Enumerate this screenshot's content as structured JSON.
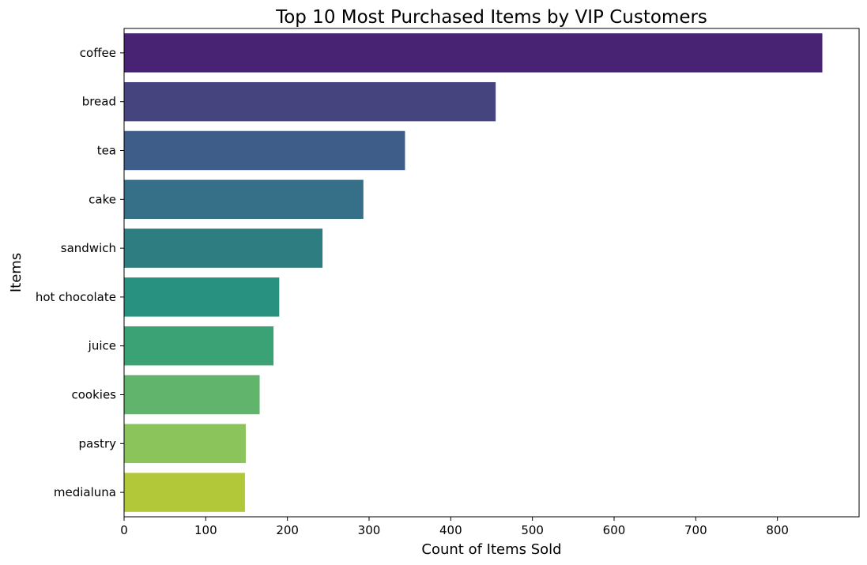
{
  "chart_data": {
    "type": "bar",
    "orientation": "horizontal",
    "title": "Top 10 Most Purchased Items by VIP Customers",
    "xlabel": "Count of Items Sold",
    "ylabel": "Items",
    "categories": [
      "coffee",
      "bread",
      "tea",
      "cake",
      "sandwich",
      "hot chocolate",
      "juice",
      "cookies",
      "pastry",
      "medialuna"
    ],
    "values": [
      855,
      455,
      344,
      293,
      243,
      190,
      183,
      166,
      149,
      148
    ],
    "colors": [
      "#482374",
      "#46447e",
      "#3e5d89",
      "#366f88",
      "#2e7d80",
      "#29917f",
      "#3aa274",
      "#60b46c",
      "#8bc45a",
      "#b2c838"
    ],
    "xlim": [
      0,
      900
    ],
    "xticks": [
      0,
      100,
      200,
      300,
      400,
      500,
      600,
      700,
      800
    ],
    "grid": false,
    "legend": "none"
  }
}
